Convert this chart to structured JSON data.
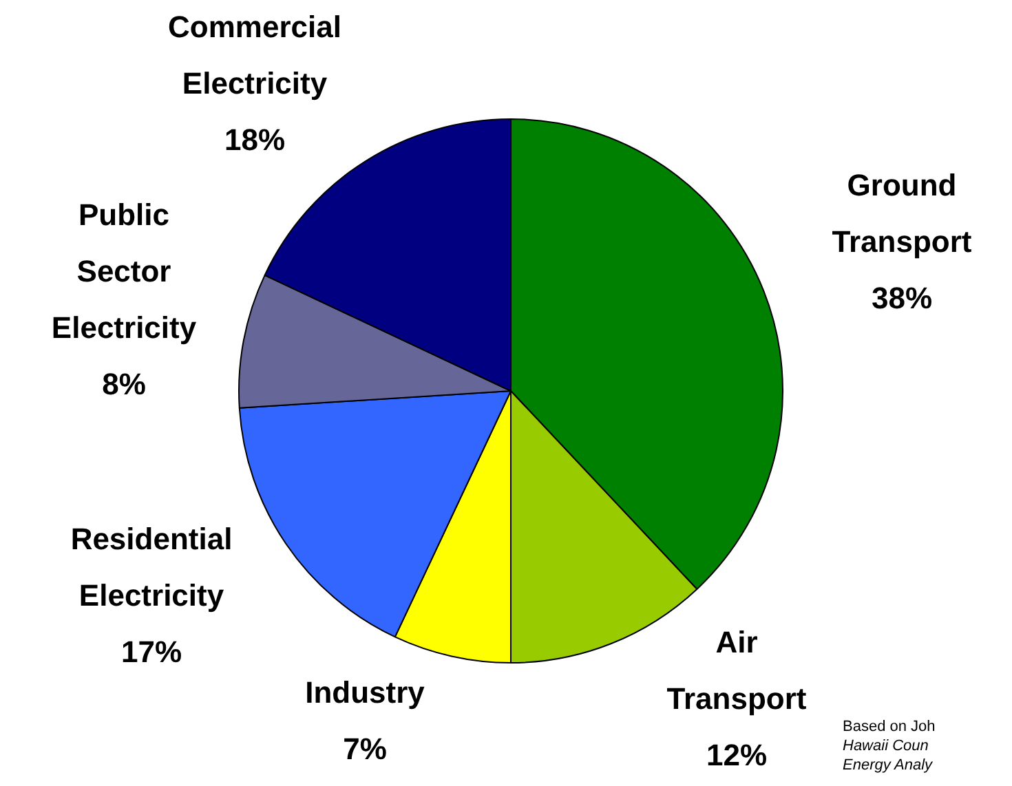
{
  "chart_data": {
    "type": "pie",
    "categories": [
      "Ground Transport",
      "Air Transport",
      "Industry",
      "Residential Electricity",
      "Public Sector Electricity",
      "Commercial Electricity"
    ],
    "values": [
      38,
      12,
      7,
      17,
      8,
      18
    ],
    "colors": [
      "#008000",
      "#99cc00",
      "#ffff00",
      "#3366ff",
      "#666699",
      "#000080"
    ],
    "value_labels": [
      "38%",
      "12%",
      "7%",
      "17%",
      "8%",
      "18%"
    ],
    "legend": false,
    "annotations": [
      "Based on Joh",
      "Hawaii Coun",
      "Energy Analy"
    ]
  }
}
